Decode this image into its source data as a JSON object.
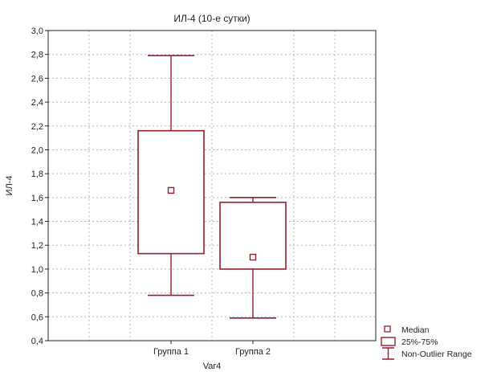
{
  "chart_data": {
    "type": "boxplot",
    "title": "ИЛ-4 (10-е сутки)",
    "xlabel": "Var4",
    "ylabel": "ИЛ-4",
    "ylim": [
      0.4,
      3.0
    ],
    "y_ticks": [
      0.4,
      0.6,
      0.8,
      1.0,
      1.2,
      1.4,
      1.6,
      1.8,
      2.0,
      2.2,
      2.4,
      2.6,
      2.8,
      3.0
    ],
    "y_tick_labels": [
      "0,4",
      "0,6",
      "0,8",
      "1,0",
      "1,2",
      "1,4",
      "1,6",
      "1,8",
      "2,0",
      "2,2",
      "2,4",
      "2,6",
      "2,8",
      "3,0"
    ],
    "categories": [
      "Группа 1",
      "Группа 2"
    ],
    "boxes": [
      {
        "category": "Группа 1",
        "min": 0.78,
        "q1": 1.13,
        "median": 1.66,
        "q3": 2.16,
        "max": 2.79
      },
      {
        "category": "Группа 2",
        "min": 0.59,
        "q1": 1.0,
        "median": 1.1,
        "q3": 1.56,
        "max": 1.6
      }
    ],
    "grid": true,
    "legend_position": "bottom-right",
    "legend": [
      "Median",
      "25%-75%",
      "Non-Outlier Range"
    ],
    "colors": {
      "box": "#9b1c2c",
      "grid": "#b5b5b5",
      "axis": "#222222"
    }
  }
}
